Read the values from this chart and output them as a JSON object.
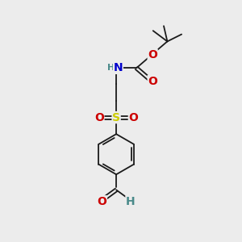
{
  "background_color": "#ececec",
  "atom_colors": {
    "C": "#1a1a1a",
    "H": "#4a8a8a",
    "N": "#0000cc",
    "O": "#cc0000",
    "S": "#cccc00"
  },
  "bond_color": "#1a1a1a",
  "bond_width": 1.3,
  "figsize": [
    3.0,
    3.0
  ],
  "dpi": 100
}
